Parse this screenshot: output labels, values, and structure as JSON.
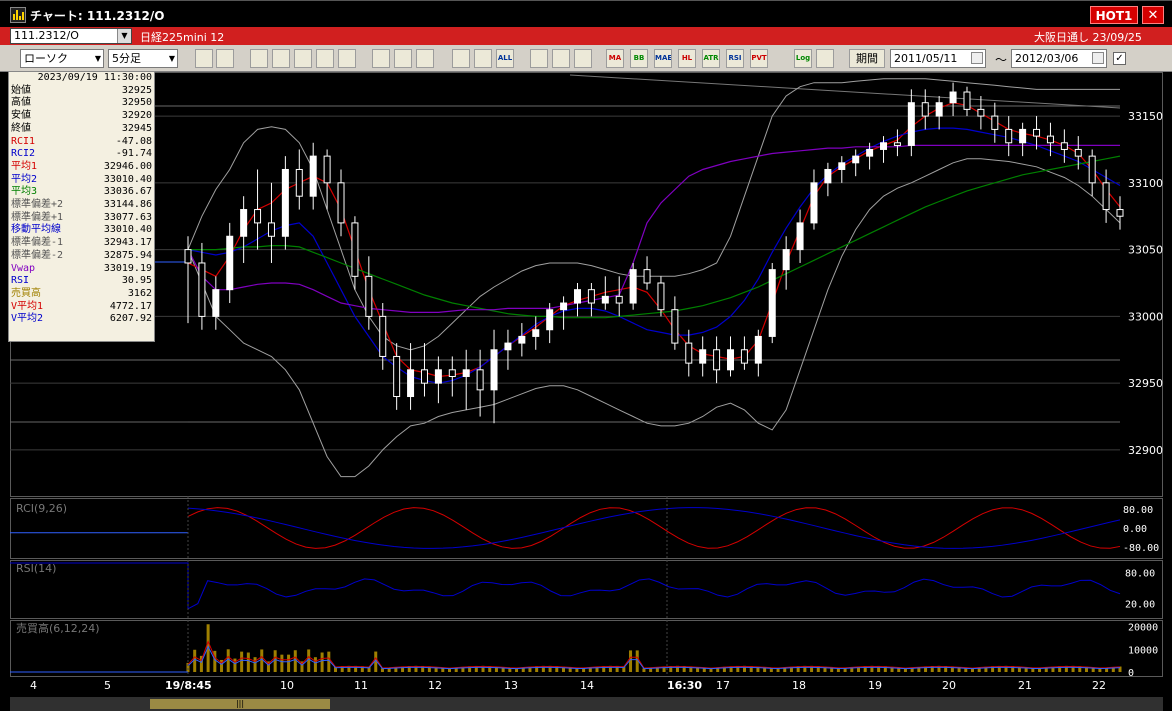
{
  "window": {
    "title": "チャート: 111.2312/O",
    "hot_badge": "HOT1",
    "close_label": "✕"
  },
  "symbol_bar": {
    "code": "111.2312/O",
    "name": "日経225mini 12",
    "session": "大阪日通し  23/09/25"
  },
  "toolbar": {
    "chart_type": "ローソク",
    "interval": "5分足",
    "buttons": [
      "",
      "",
      "",
      "",
      "",
      "",
      "",
      "",
      "",
      "",
      "",
      "",
      "ALL",
      "",
      "",
      "",
      "MA",
      "BB",
      "MAE",
      "HL",
      "ATR",
      "RSI",
      "PVT",
      "Log",
      ""
    ],
    "period_label": "期間",
    "date_from": "2011/05/11",
    "date_sep": "〜",
    "date_to": "2012/03/06"
  },
  "info_panel": {
    "datetime": "2023/09/19  11:30:00",
    "rows": [
      {
        "label": "始値",
        "value": "32925",
        "color": "#000000"
      },
      {
        "label": "高値",
        "value": "32950",
        "color": "#000000"
      },
      {
        "label": "安値",
        "value": "32920",
        "color": "#000000"
      },
      {
        "label": "終値",
        "value": "32945",
        "color": "#000000"
      },
      {
        "label": "RCI1",
        "value": "-47.08",
        "color": "#d40000"
      },
      {
        "label": "RCI2",
        "value": "-91.74",
        "color": "#0000cc"
      },
      {
        "label": "平均1",
        "value": "32946.00",
        "color": "#d40000"
      },
      {
        "label": "平均2",
        "value": "33010.40",
        "color": "#0000cc"
      },
      {
        "label": "平均3",
        "value": "33036.67",
        "color": "#008000"
      },
      {
        "label": "標準偏差+2",
        "value": "33144.86",
        "color": "#555555"
      },
      {
        "label": "標準偏差+1",
        "value": "33077.63",
        "color": "#555555"
      },
      {
        "label": "移動平均線",
        "value": "33010.40",
        "color": "#0000cc"
      },
      {
        "label": "標準偏差-1",
        "value": "32943.17",
        "color": "#555555"
      },
      {
        "label": "標準偏差-2",
        "value": "32875.94",
        "color": "#555555"
      },
      {
        "label": "Vwap",
        "value": "33019.19",
        "color": "#8000c0"
      },
      {
        "label": "RSI",
        "value": "30.95",
        "color": "#0000cc"
      },
      {
        "label": "売買高",
        "value": "3162",
        "color": "#a08000"
      },
      {
        "label": "V平均1",
        "value": "4772.17",
        "color": "#d40000"
      },
      {
        "label": "V平均2",
        "value": "6207.92",
        "color": "#0000cc"
      }
    ]
  },
  "panels": {
    "rci": {
      "label": "RCI(9,26)",
      "ticks": [
        "80.00",
        "0.00",
        "-80.00"
      ]
    },
    "rsi": {
      "label": "RSI(14)",
      "ticks": [
        "80.00",
        "20.00"
      ]
    },
    "volume": {
      "label": "売買高(6,12,24)",
      "ticks": [
        "20000",
        "10000",
        "0"
      ]
    }
  },
  "price_ticks": [
    "33150",
    "33100",
    "33050",
    "33000",
    "32950",
    "32900"
  ],
  "x_labels": [
    "4",
    "5",
    "19/8:45",
    "10",
    "11",
    "12",
    "13",
    "14",
    "16:30",
    "17",
    "18",
    "19",
    "20",
    "21",
    "22"
  ],
  "scroll_thumb": "|||",
  "chart_data": {
    "type": "candlestick",
    "y_range": [
      32870,
      33180
    ],
    "price_axis_ticks": [
      33150,
      33100,
      33050,
      33000,
      32950,
      32900
    ],
    "candles": [
      [
        33050,
        33060,
        32995,
        33040
      ],
      [
        33040,
        33055,
        32990,
        33000
      ],
      [
        33000,
        33030,
        32990,
        33020
      ],
      [
        33020,
        33070,
        33010,
        33060
      ],
      [
        33060,
        33090,
        33040,
        33080
      ],
      [
        33080,
        33110,
        33050,
        33070
      ],
      [
        33070,
        33100,
        33040,
        33060
      ],
      [
        33060,
        33120,
        33050,
        33110
      ],
      [
        33110,
        33125,
        33080,
        33090
      ],
      [
        33090,
        33130,
        33080,
        33120
      ],
      [
        33120,
        33125,
        33080,
        33100
      ],
      [
        33100,
        33110,
        33060,
        33070
      ],
      [
        33070,
        33075,
        33020,
        33030
      ],
      [
        33030,
        33045,
        32990,
        33000
      ],
      [
        33000,
        33010,
        32960,
        32970
      ],
      [
        32970,
        32980,
        32930,
        32940
      ],
      [
        32940,
        32980,
        32930,
        32960
      ],
      [
        32960,
        32980,
        32940,
        32950
      ],
      [
        32950,
        32970,
        32935,
        32960
      ],
      [
        32960,
        32970,
        32940,
        32955
      ],
      [
        32955,
        32975,
        32930,
        32960
      ],
      [
        32960,
        32975,
        32925,
        32945
      ],
      [
        32945,
        32990,
        32920,
        32975
      ],
      [
        32975,
        32990,
        32960,
        32980
      ],
      [
        32980,
        32995,
        32970,
        32985
      ],
      [
        32985,
        33000,
        32975,
        32990
      ],
      [
        32990,
        33010,
        32980,
        33005
      ],
      [
        33005,
        33015,
        32990,
        33010
      ],
      [
        33010,
        33025,
        33000,
        33020
      ],
      [
        33020,
        33025,
        33000,
        33010
      ],
      [
        33010,
        33030,
        33005,
        33015
      ],
      [
        33015,
        33030,
        33000,
        33010
      ],
      [
        33010,
        33040,
        33005,
        33035
      ],
      [
        33035,
        33045,
        33020,
        33025
      ],
      [
        33025,
        33030,
        33000,
        33005
      ],
      [
        33005,
        33015,
        32975,
        32980
      ],
      [
        32980,
        32990,
        32955,
        32965
      ],
      [
        32965,
        32985,
        32955,
        32975
      ],
      [
        32975,
        32985,
        32950,
        32960
      ],
      [
        32960,
        32985,
        32955,
        32975
      ],
      [
        32975,
        32985,
        32960,
        32965
      ],
      [
        32965,
        32990,
        32955,
        32985
      ],
      [
        32985,
        33040,
        32980,
        33035
      ],
      [
        33035,
        33060,
        33020,
        33050
      ],
      [
        33050,
        33080,
        33040,
        33070
      ],
      [
        33070,
        33110,
        33065,
        33100
      ],
      [
        33100,
        33115,
        33090,
        33110
      ],
      [
        33110,
        33120,
        33100,
        33115
      ],
      [
        33115,
        33125,
        33105,
        33120
      ],
      [
        33120,
        33130,
        33110,
        33125
      ],
      [
        33125,
        33135,
        33115,
        33130
      ],
      [
        33130,
        33140,
        33120,
        33128
      ],
      [
        33128,
        33170,
        33120,
        33160
      ],
      [
        33160,
        33170,
        33140,
        33150
      ],
      [
        33150,
        33165,
        33140,
        33160
      ],
      [
        33160,
        33175,
        33150,
        33168
      ],
      [
        33168,
        33172,
        33150,
        33155
      ],
      [
        33155,
        33165,
        33140,
        33150
      ],
      [
        33150,
        33160,
        33130,
        33140
      ],
      [
        33140,
        33150,
        33120,
        33130
      ],
      [
        33130,
        33145,
        33120,
        33140
      ],
      [
        33140,
        33150,
        33125,
        33135
      ],
      [
        33135,
        33145,
        33120,
        33130
      ],
      [
        33130,
        33140,
        33115,
        33125
      ],
      [
        33125,
        33135,
        33110,
        33120
      ],
      [
        33120,
        33125,
        33090,
        33100
      ],
      [
        33100,
        33110,
        33070,
        33080
      ],
      [
        33080,
        33090,
        33065,
        33075
      ]
    ],
    "series": [
      {
        "name": "平均1",
        "color": "#d40000",
        "values": [
          33040,
          33035,
          33030,
          33045,
          33065,
          33080,
          33085,
          33095,
          33100,
          33105,
          33100,
          33080,
          33050,
          33020,
          32995,
          32970,
          32960,
          32958,
          32955,
          32956,
          32958,
          32962,
          32970,
          32978,
          32985,
          32992,
          33000,
          33008,
          33012,
          33015,
          33018,
          33020,
          33022,
          33018,
          33005,
          32990,
          32978,
          32972,
          32970,
          32968,
          32970,
          32982,
          33010,
          33040,
          33065,
          33090,
          33105,
          33112,
          33118,
          33124,
          33128,
          33132,
          33142,
          33150,
          33156,
          33160,
          33158,
          33152,
          33146,
          33140,
          33137,
          33135,
          33132,
          33128,
          33122,
          33110,
          33095,
          33082
        ]
      },
      {
        "name": "平均2",
        "color": "#0000cc",
        "values": [
          33050,
          33048,
          33046,
          33048,
          33052,
          33058,
          33064,
          33068,
          33070,
          33060,
          33040,
          33020,
          33000,
          32985,
          32970,
          32962,
          32955,
          32952,
          32950,
          32952,
          32956,
          32962,
          32970,
          32978,
          32986,
          32994,
          33000,
          33004,
          33006,
          33006,
          33004,
          33000,
          32995,
          32990,
          32988,
          32986,
          32986,
          32988,
          32992,
          33000,
          33012,
          33028,
          33048,
          33066,
          33082,
          33096,
          33106,
          33114,
          33120,
          33126,
          33131,
          33135,
          33138,
          33140,
          33141,
          33141,
          33140,
          33138,
          33136,
          33134,
          33131,
          33128,
          33124,
          33120,
          33116,
          33110,
          33104,
          33098
        ]
      },
      {
        "name": "平均3",
        "color": "#008000",
        "values": [
          33050,
          33050,
          33050,
          33051,
          33052,
          33052,
          33053,
          33053,
          33052,
          33048,
          33044,
          33040,
          33036,
          33032,
          33028,
          33024,
          33020,
          33016,
          33013,
          33010,
          33008,
          33006,
          33004,
          33002,
          33001,
          33000,
          33000,
          32999,
          32999,
          32999,
          32999,
          33000,
          33001,
          33002,
          33003,
          33004,
          33006,
          33008,
          33011,
          33014,
          33018,
          33022,
          33027,
          33032,
          33037,
          33042,
          33047,
          33052,
          33057,
          33062,
          33067,
          33072,
          33077,
          33082,
          33086,
          33090,
          33094,
          33097,
          33100,
          33103,
          33106,
          33108,
          33110,
          33112,
          33114,
          33116,
          33118,
          33120
        ]
      },
      {
        "name": "Vwap",
        "color": "#8000c0",
        "values": [
          33050,
          33030,
          33020,
          33020,
          33022,
          33024,
          33025,
          33025,
          33024,
          33020,
          33015,
          33010,
          33008,
          33006,
          33005,
          33004,
          33003,
          33003,
          33003,
          33004,
          33005,
          33005,
          33005,
          33006,
          33006,
          33006,
          33006,
          33008,
          33010,
          33012,
          33014,
          33016,
          33040,
          33070,
          33085,
          33095,
          33105,
          33110,
          33113,
          33116,
          33118,
          33120,
          33122,
          33123,
          33124,
          33125,
          33126,
          33126,
          33127,
          33127,
          33127,
          33127,
          33128,
          33128,
          33128,
          33128,
          33128,
          33128,
          33128,
          33128,
          33128,
          33128,
          33128,
          33128,
          33128,
          33128,
          33128,
          33128
        ]
      }
    ],
    "bollinger": [
      {
        "name": "標準偏差+2",
        "color": "#a0a0a0",
        "values": [
          33050,
          33075,
          33095,
          33110,
          33130,
          33140,
          33142,
          33140,
          33130,
          33110,
          33080,
          33050,
          33020,
          33000,
          32985,
          32978,
          32975,
          32978,
          32985,
          32995,
          33005,
          33015,
          33022,
          33028,
          33034,
          33038,
          33040,
          33040,
          33040,
          33038,
          33035,
          33032,
          33030,
          33030,
          33030,
          33030,
          33032,
          33035,
          33040,
          33060,
          33090,
          33120,
          33150,
          33165,
          33172,
          33175,
          33175,
          33175,
          33176,
          33177,
          33178,
          33178,
          33178,
          33178,
          33177,
          33176,
          33175,
          33174,
          33173,
          33172,
          33171,
          33170,
          33170,
          33170,
          33170,
          33170,
          33170,
          33170
        ]
      },
      {
        "name": "標準偏差-2",
        "color": "#a0a0a0",
        "values": [
          33050,
          33025,
          33000,
          32990,
          32980,
          32975,
          32970,
          32960,
          32945,
          32920,
          32895,
          32880,
          32880,
          32888,
          32900,
          32910,
          32918,
          32920,
          32925,
          32928,
          32930,
          32932,
          32934,
          32938,
          32942,
          32946,
          32948,
          32948,
          32945,
          32940,
          32935,
          32930,
          32925,
          32920,
          32918,
          32918,
          32920,
          32925,
          32932,
          32935,
          32930,
          32920,
          32915,
          32930,
          32960,
          32990,
          33020,
          33045,
          33065,
          33080,
          33090,
          33096,
          33100,
          33105,
          33110,
          33115,
          33118,
          33118,
          33117,
          33116,
          33114,
          33112,
          33108,
          33104,
          33098,
          33090,
          33080,
          33070
        ]
      }
    ],
    "rci": {
      "series": [
        {
          "name": "RCI1",
          "color": "#d40000"
        },
        {
          "name": "RCI2",
          "color": "#0000cc"
        }
      ],
      "range": [
        -100,
        100
      ]
    },
    "rsi": {
      "series": [
        {
          "name": "RSI",
          "color": "#0000cc"
        }
      ],
      "range": [
        0,
        100
      ]
    },
    "volume": {
      "color": "#a08000",
      "range": [
        0,
        22000
      ]
    }
  }
}
